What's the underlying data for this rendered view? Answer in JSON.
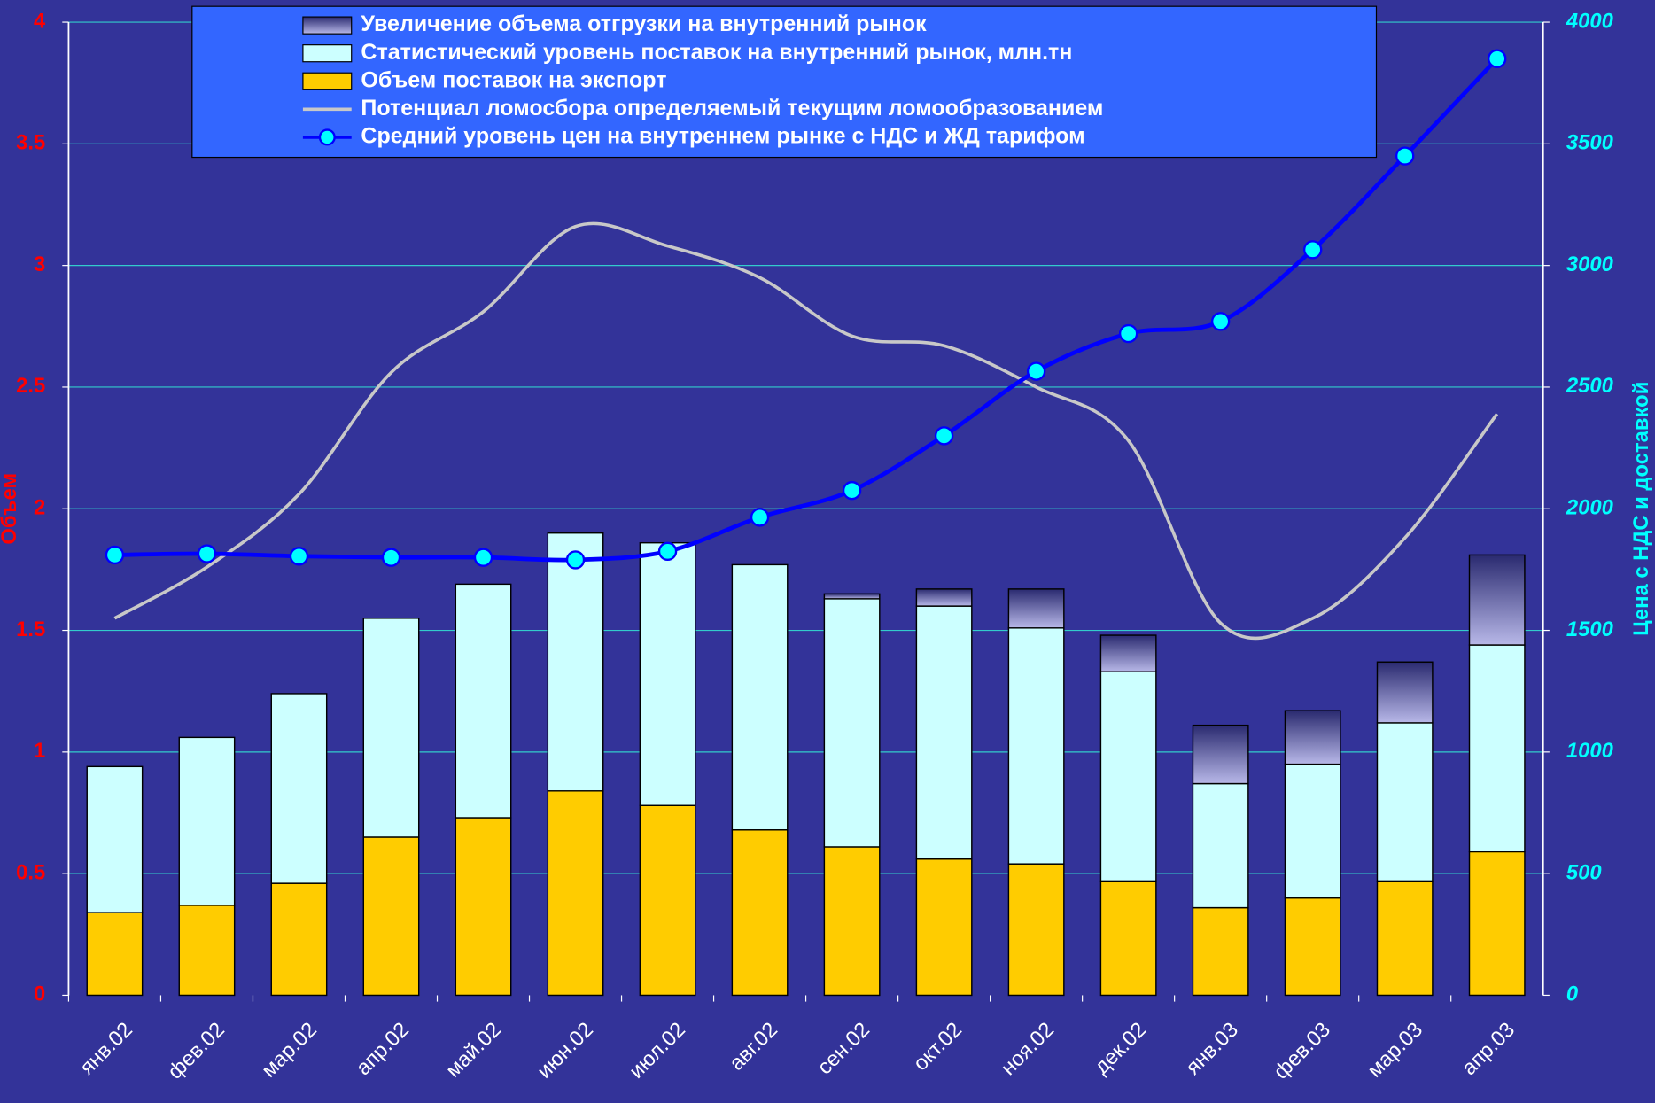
{
  "chart_data": {
    "type": "bar",
    "y_label": "Объем",
    "y2_label": "Цена с НДС и доставкой",
    "categories": [
      "янв.02",
      "фев.02",
      "мар.02",
      "апр.02",
      "май.02",
      "июн.02",
      "июл.02",
      "авг.02",
      "сен.02",
      "окт.02",
      "ноя.02",
      "дек.02",
      "янв.03",
      "фев.03",
      "мар.03",
      "апр.03"
    ],
    "ylim": [
      0,
      4
    ],
    "yticks": [
      0,
      0.5,
      1,
      1.5,
      2,
      2.5,
      3,
      3.5,
      4
    ],
    "y2lim": [
      0,
      4000
    ],
    "y2ticks": [
      0,
      500,
      1000,
      1500,
      2000,
      2500,
      3000,
      3500,
      4000
    ],
    "grid": true,
    "legend": "top",
    "stacked": true,
    "series": [
      {
        "name": "Увеличение объема отгрузки на внутренний рынок",
        "type": "bar",
        "stack_order": 2,
        "color": "#5c5caa",
        "values": [
          0,
          0,
          0,
          0,
          0,
          0,
          0,
          0,
          0.02,
          0.07,
          0.16,
          0.15,
          0.24,
          0.22,
          0.25,
          0.37
        ]
      },
      {
        "name": "Статистический уровень поставок на внутренний рынок, млн.тн",
        "type": "bar",
        "stack_order": 1,
        "color": "#ccffff",
        "values": [
          0.6,
          0.69,
          0.78,
          0.9,
          0.96,
          1.06,
          1.08,
          1.09,
          1.02,
          1.04,
          0.97,
          0.86,
          0.51,
          0.55,
          0.65,
          0.85
        ]
      },
      {
        "name": "Объем поставок на экспорт",
        "type": "bar",
        "stack_order": 0,
        "color": "#ffcc00",
        "values": [
          0.34,
          0.37,
          0.46,
          0.65,
          0.73,
          0.84,
          0.78,
          0.68,
          0.61,
          0.56,
          0.54,
          0.47,
          0.36,
          0.4,
          0.47,
          0.59
        ]
      },
      {
        "name": "Потенциал ломосбора определяемый текущим ломообразованием",
        "type": "line",
        "color": "#c8c8c8",
        "values": [
          1.55,
          1.76,
          2.06,
          2.56,
          2.81,
          3.16,
          3.08,
          2.95,
          2.71,
          2.67,
          2.5,
          2.28,
          1.53,
          1.55,
          1.88,
          2.39
        ]
      },
      {
        "name": "Средний уровень цен на внутреннем рынке с НДС и ЖД тарифом",
        "type": "line",
        "axis": "y2",
        "color": "#0000ff",
        "marker_color": "#00ffff",
        "values": [
          1810,
          1815,
          1805,
          1800,
          1800,
          1790,
          1825,
          1965,
          2075,
          2300,
          2565,
          2720,
          2770,
          3065,
          3450,
          3850
        ]
      }
    ]
  }
}
